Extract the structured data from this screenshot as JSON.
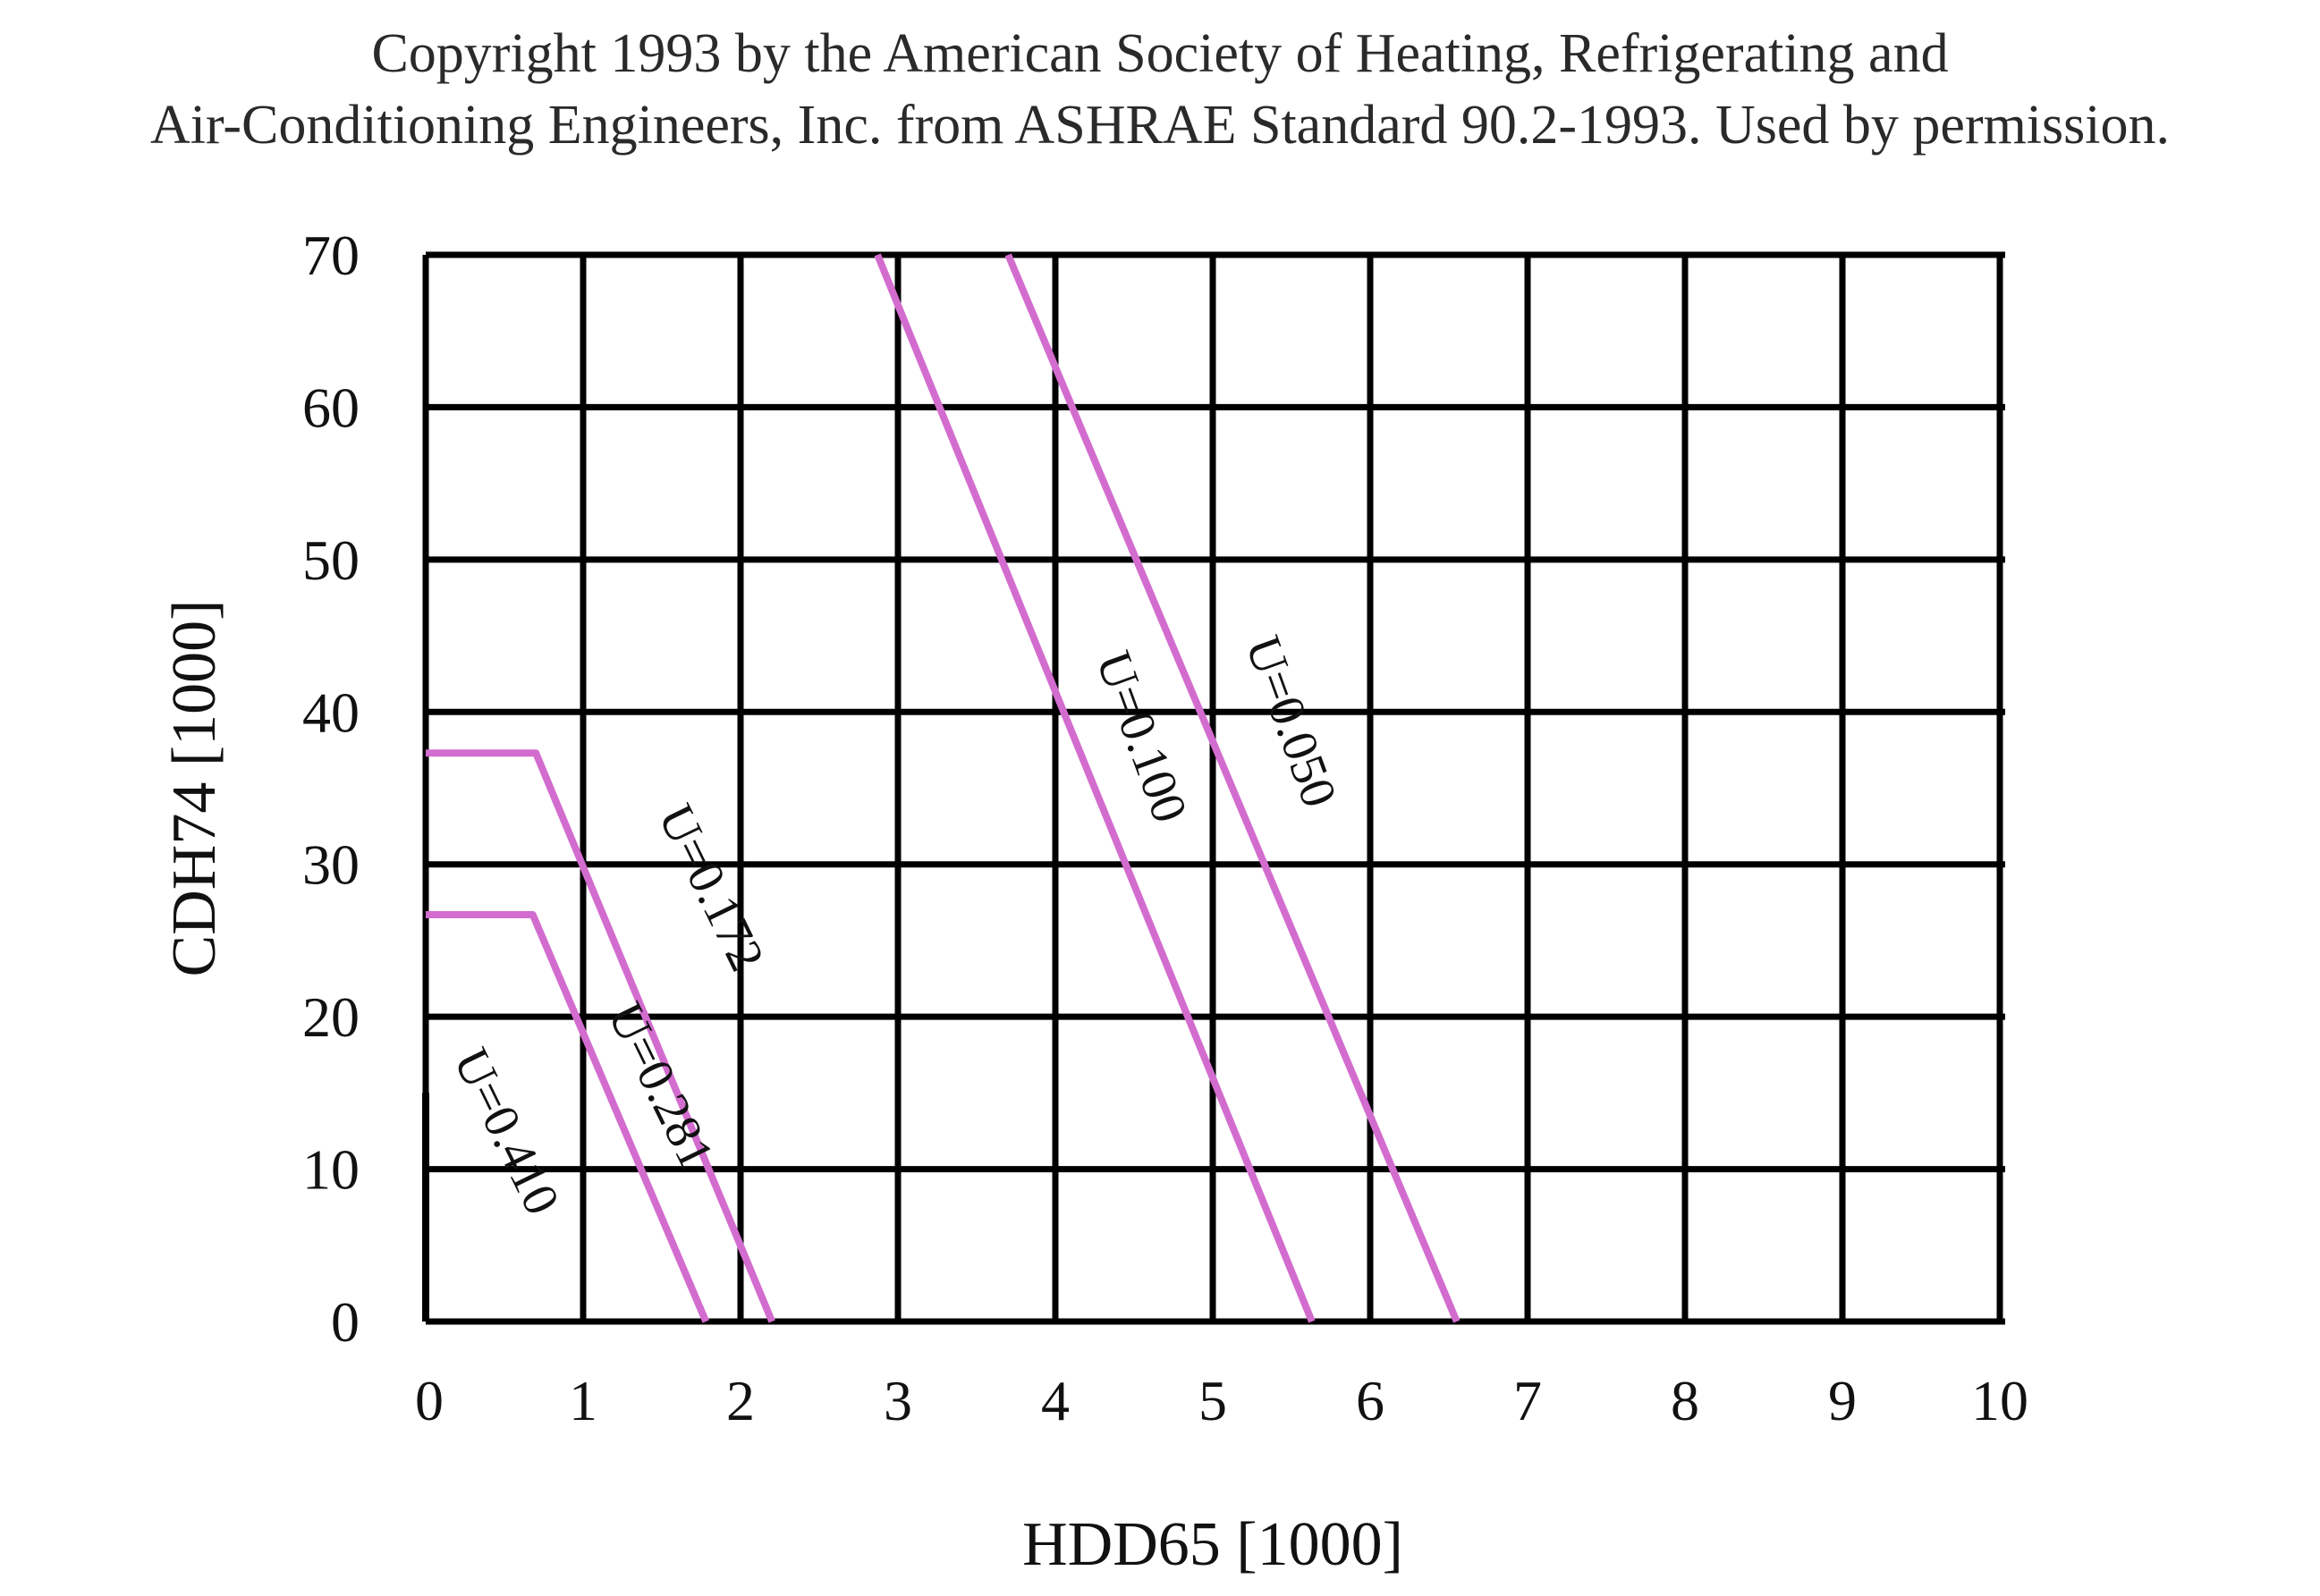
{
  "copyright": {
    "line1": "Copyright 1993 by the American Society of Heating, Refrigerating and",
    "line2": "Air-Conditioning Engineers, Inc. from ASHRAE Standard 90.2-1993. Used by permission."
  },
  "colors": {
    "grid": "#000000",
    "series": "#d36ccf",
    "text": "#111111"
  },
  "chart_data": {
    "type": "line",
    "title": "",
    "xlabel": "HDD65 [1000]",
    "ylabel": "CDH74 [1000]",
    "xlim": [
      0,
      10
    ],
    "ylim": [
      0,
      70
    ],
    "x_ticks": [
      "0",
      "1",
      "2",
      "3",
      "4",
      "5",
      "6",
      "7",
      "8",
      "9",
      "10"
    ],
    "y_ticks": [
      "0",
      "10",
      "20",
      "30",
      "40",
      "50",
      "60",
      "70"
    ],
    "grid": true,
    "legend": "none",
    "series": [
      {
        "name": "U=0.410",
        "color": "#000000",
        "points": [
          [
            0,
            15
          ],
          [
            0,
            0
          ]
        ]
      },
      {
        "name": "U=0.281",
        "color": "#d36ccf",
        "points": [
          [
            0,
            26.7
          ],
          [
            0.68,
            26.7
          ],
          [
            1.78,
            0
          ]
        ]
      },
      {
        "name": "U=0.172",
        "color": "#d36ccf",
        "points": [
          [
            0,
            37.3
          ],
          [
            0.7,
            37.3
          ],
          [
            2.2,
            0
          ]
        ]
      },
      {
        "name": "U=0.100",
        "color": "#d36ccf",
        "points": [
          [
            2.87,
            70
          ],
          [
            5.63,
            0
          ]
        ]
      },
      {
        "name": "U=0.050",
        "color": "#d36ccf",
        "points": [
          [
            3.7,
            70
          ],
          [
            6.55,
            0
          ]
        ]
      }
    ],
    "labels": [
      {
        "text": "U=0.410",
        "x": 0.42,
        "y": 12,
        "angle": 64
      },
      {
        "text": "U=0.281",
        "x": 1.4,
        "y": 15,
        "angle": 64
      },
      {
        "text": "U=0.172",
        "x": 1.72,
        "y": 28,
        "angle": 64
      },
      {
        "text": "U=0.100",
        "x": 4.45,
        "y": 38,
        "angle": 70
      },
      {
        "text": "U=0.050",
        "x": 5.4,
        "y": 39,
        "angle": 70
      }
    ]
  }
}
